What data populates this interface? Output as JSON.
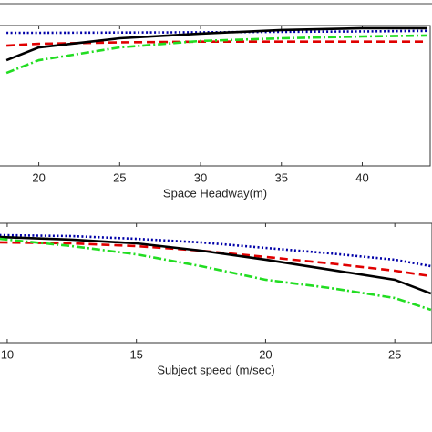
{
  "chart_data": [
    {
      "type": "line",
      "x_label": "Space Headway(m)",
      "x": [
        18,
        20,
        25,
        30,
        35,
        40,
        44
      ],
      "xlim": [
        17.6,
        44.2
      ],
      "xticks": [
        20,
        25,
        30,
        35,
        40
      ],
      "ylim": [
        0,
        1
      ],
      "series": [
        {
          "color": "#0000a8",
          "dash": "dotted",
          "values": [
            0.948,
            0.948,
            0.95,
            0.952,
            0.955,
            0.958,
            0.962
          ]
        },
        {
          "color": "#e00000",
          "dash": "dashed",
          "values": [
            0.857,
            0.87,
            0.88,
            0.885,
            0.885,
            0.885,
            0.885
          ]
        },
        {
          "color": "#000000",
          "dash": "solid",
          "values": [
            0.753,
            0.844,
            0.909,
            0.942,
            0.968,
            0.981,
            0.981
          ]
        },
        {
          "color": "#22dd22",
          "dash": "dashdot",
          "values": [
            0.662,
            0.753,
            0.844,
            0.89,
            0.909,
            0.922,
            0.929
          ]
        }
      ]
    },
    {
      "type": "line",
      "x_label": "Subject speed (m/sec)",
      "x": [
        9.7,
        12.5,
        15,
        17.5,
        20,
        22.5,
        25,
        26.4
      ],
      "xlim": [
        9.72,
        26.44
      ],
      "xticks": [
        10,
        15,
        20,
        25
      ],
      "ylim": [
        0,
        1
      ],
      "series": [
        {
          "color": "#0000a8",
          "dash": "dotted",
          "values": [
            0.901,
            0.893,
            0.87,
            0.84,
            0.794,
            0.748,
            0.695,
            0.641
          ]
        },
        {
          "color": "#e00000",
          "dash": "dashed",
          "values": [
            0.84,
            0.832,
            0.809,
            0.771,
            0.718,
            0.664,
            0.603,
            0.557
          ]
        },
        {
          "color": "#000000",
          "dash": "solid",
          "values": [
            0.885,
            0.863,
            0.832,
            0.771,
            0.695,
            0.611,
            0.527,
            0.412
          ]
        },
        {
          "color": "#22dd22",
          "dash": "dashdot",
          "values": [
            0.87,
            0.809,
            0.74,
            0.641,
            0.527,
            0.458,
            0.374,
            0.275
          ]
        }
      ]
    }
  ]
}
